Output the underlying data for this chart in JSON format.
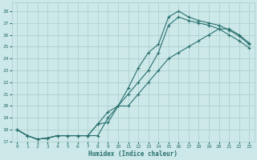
{
  "xlabel": "Humidex (Indice chaleur)",
  "bg_color": "#cce8e8",
  "grid_color": "#aacccc",
  "line_color": "#2a7070",
  "xlim": [
    -0.5,
    23.5
  ],
  "ylim": [
    17,
    28.7
  ],
  "xticks": [
    0,
    1,
    2,
    3,
    4,
    5,
    6,
    7,
    8,
    9,
    10,
    11,
    12,
    13,
    14,
    15,
    16,
    17,
    18,
    19,
    20,
    21,
    22,
    23
  ],
  "yticks": [
    17,
    18,
    19,
    20,
    21,
    22,
    23,
    24,
    25,
    26,
    27,
    28
  ],
  "curve1_x": [
    0,
    1,
    2,
    3,
    4,
    5,
    6,
    7,
    8,
    9,
    10,
    11,
    12,
    13,
    14,
    15,
    16,
    17,
    18,
    19,
    20,
    21,
    22,
    23
  ],
  "curve1_y": [
    18.0,
    17.5,
    17.2,
    17.3,
    17.5,
    17.5,
    17.5,
    17.5,
    17.5,
    19.0,
    20.0,
    21.5,
    23.2,
    24.5,
    25.2,
    27.5,
    28.0,
    27.5,
    27.2,
    27.0,
    26.8,
    26.4,
    25.9,
    25.2
  ],
  "curve2_x": [
    0,
    1,
    2,
    3,
    4,
    5,
    6,
    7,
    8,
    9,
    10,
    11,
    12,
    13,
    14,
    15,
    16,
    17,
    18,
    19,
    20,
    21,
    22,
    23
  ],
  "curve2_y": [
    18.0,
    17.5,
    17.2,
    17.3,
    17.5,
    17.5,
    17.5,
    17.5,
    18.5,
    19.5,
    20.0,
    21.0,
    22.0,
    23.0,
    24.5,
    26.8,
    27.5,
    27.2,
    27.0,
    26.8,
    26.5,
    26.0,
    25.5,
    24.9
  ],
  "curve3_x": [
    0,
    1,
    2,
    3,
    4,
    5,
    6,
    7,
    8,
    9,
    10,
    11,
    12,
    13,
    14,
    15,
    16,
    17,
    18,
    19,
    20,
    21,
    22,
    23
  ],
  "curve3_y": [
    18.0,
    17.5,
    17.2,
    17.3,
    17.5,
    17.5,
    17.5,
    17.5,
    18.5,
    18.6,
    20.0,
    20.0,
    21.0,
    22.0,
    23.0,
    24.0,
    24.5,
    25.0,
    25.5,
    26.0,
    26.5,
    26.5,
    26.0,
    25.3
  ]
}
